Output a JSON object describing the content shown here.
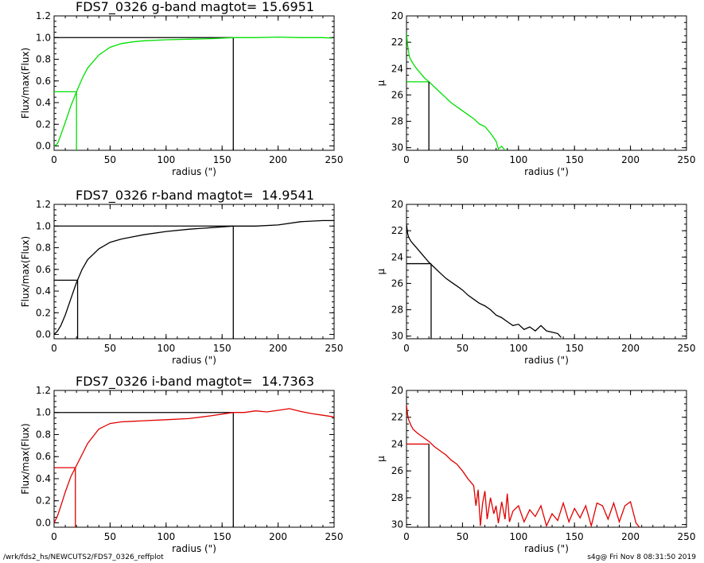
{
  "footer": {
    "left": "/wrk/fds2_hs/NEWCUTS2/FDS7_0326_reffplot",
    "right": "s4g@  Fri Nov  8 08:31:50 2019"
  },
  "chart_data": [
    {
      "type": "line",
      "title": "FDS7_0326 g-band  magtot=",
      "magtot": "15.6951",
      "xlabel": "radius (\")",
      "ylabel": "Flux/max(Flux)",
      "xlim": [
        0,
        250
      ],
      "ylim": [
        -0.04,
        1.2
      ],
      "xticks": [
        0,
        50,
        100,
        150,
        200,
        250
      ],
      "yticks": [
        "0.0",
        "0.2",
        "0.4",
        "0.6",
        "0.8",
        "1.0",
        "1.2"
      ],
      "color": "#00e000",
      "series": [
        {
          "x": [
            0,
            3,
            6,
            10,
            15,
            20,
            25,
            30,
            40,
            50,
            60,
            70,
            80,
            100,
            120,
            140,
            160,
            180,
            200,
            220,
            240,
            248
          ],
          "y": [
            0,
            0.02,
            0.1,
            0.22,
            0.37,
            0.5,
            0.62,
            0.72,
            0.84,
            0.91,
            0.945,
            0.96,
            0.97,
            0.98,
            0.985,
            0.99,
            1.0,
            1.0,
            1.005,
            1.0,
            1.0,
            0.995
          ]
        }
      ],
      "half_light": {
        "x": 20,
        "y": 0.5
      },
      "total": {
        "x": 160,
        "y": 1.0
      }
    },
    {
      "type": "line",
      "ylabel": "μ",
      "xlabel": "radius (\")",
      "xlim": [
        0,
        250
      ],
      "ylim": [
        30.2,
        20
      ],
      "xticks": [
        0,
        50,
        100,
        150,
        200,
        250
      ],
      "yticks": [
        "20",
        "22",
        "24",
        "26",
        "28",
        "30"
      ],
      "color": "#00e000",
      "series": [
        {
          "x": [
            0,
            1,
            2,
            3,
            5,
            8,
            12,
            16,
            20,
            25,
            30,
            35,
            40,
            45,
            50,
            55,
            60,
            65,
            70,
            75,
            80,
            82,
            85,
            88
          ],
          "y": [
            21.3,
            22.2,
            22.8,
            23.2,
            23.5,
            23.9,
            24.3,
            24.7,
            25.0,
            25.4,
            25.8,
            26.2,
            26.6,
            26.9,
            27.2,
            27.5,
            27.8,
            28.2,
            28.4,
            28.9,
            29.5,
            30.1,
            29.9,
            30.2
          ]
        }
      ],
      "half_light": {
        "x": 20,
        "y": 25.0
      }
    },
    {
      "type": "line",
      "title": "FDS7_0326 r-band  magtot=",
      "magtot": "14.9541",
      "xlabel": "radius (\")",
      "ylabel": "Flux/max(Flux)",
      "xlim": [
        0,
        250
      ],
      "ylim": [
        -0.04,
        1.2
      ],
      "xticks": [
        0,
        50,
        100,
        150,
        200,
        250
      ],
      "yticks": [
        "0.0",
        "0.2",
        "0.4",
        "0.6",
        "0.8",
        "1.0",
        "1.2"
      ],
      "color": "#000000",
      "series": [
        {
          "x": [
            0,
            3,
            6,
            10,
            15,
            20,
            25,
            30,
            40,
            50,
            60,
            70,
            80,
            100,
            120,
            140,
            160,
            180,
            200,
            220,
            240,
            250
          ],
          "y": [
            0,
            0.03,
            0.08,
            0.18,
            0.33,
            0.48,
            0.6,
            0.69,
            0.79,
            0.85,
            0.88,
            0.9,
            0.92,
            0.95,
            0.97,
            0.985,
            1.0,
            1.0,
            1.01,
            1.04,
            1.05,
            1.05
          ]
        }
      ],
      "half_light": {
        "x": 21,
        "y": 0.5
      },
      "total": {
        "x": 160,
        "y": 1.0
      }
    },
    {
      "type": "line",
      "ylabel": "μ",
      "xlabel": "radius (\")",
      "xlim": [
        0,
        250
      ],
      "ylim": [
        30.2,
        20
      ],
      "xticks": [
        0,
        50,
        100,
        150,
        200,
        250
      ],
      "yticks": [
        "20",
        "22",
        "24",
        "26",
        "28",
        "30"
      ],
      "color": "#000000",
      "series": [
        {
          "x": [
            0,
            1,
            2,
            4,
            6,
            10,
            15,
            20,
            25,
            30,
            35,
            40,
            45,
            50,
            55,
            60,
            65,
            70,
            75,
            80,
            85,
            90,
            95,
            100,
            105,
            110,
            115,
            120,
            125,
            130,
            135,
            138
          ],
          "y": [
            21.5,
            22.2,
            22.5,
            22.8,
            23.0,
            23.4,
            23.9,
            24.4,
            24.8,
            25.2,
            25.6,
            25.9,
            26.2,
            26.5,
            26.9,
            27.2,
            27.5,
            27.7,
            28.0,
            28.4,
            28.6,
            28.9,
            29.2,
            29.1,
            29.5,
            29.3,
            29.6,
            29.2,
            29.6,
            29.7,
            29.8,
            30.1
          ]
        }
      ],
      "half_light": {
        "x": 22,
        "y": 24.5
      }
    },
    {
      "type": "line",
      "title": "FDS7_0326 i-band  magtot=",
      "magtot": "14.7363",
      "xlabel": "radius (\")",
      "ylabel": "Flux/max(Flux)",
      "xlim": [
        0,
        250
      ],
      "ylim": [
        -0.04,
        1.2
      ],
      "xticks": [
        0,
        50,
        100,
        150,
        200,
        250
      ],
      "yticks": [
        "0.0",
        "0.2",
        "0.4",
        "0.6",
        "0.8",
        "1.0",
        "1.2"
      ],
      "color": "#e00000",
      "series": [
        {
          "x": [
            0,
            3,
            6,
            10,
            15,
            19,
            25,
            30,
            40,
            50,
            60,
            70,
            80,
            100,
            120,
            140,
            160,
            170,
            180,
            190,
            200,
            210,
            220,
            230,
            240,
            250
          ],
          "y": [
            0,
            0.06,
            0.15,
            0.28,
            0.42,
            0.5,
            0.62,
            0.72,
            0.85,
            0.9,
            0.915,
            0.92,
            0.925,
            0.935,
            0.945,
            0.97,
            1.0,
            1.0,
            1.015,
            1.005,
            1.02,
            1.035,
            1.01,
            0.99,
            0.975,
            0.96
          ]
        }
      ],
      "half_light": {
        "x": 19,
        "y": 0.5
      },
      "total": {
        "x": 160,
        "y": 1.0
      }
    },
    {
      "type": "line",
      "ylabel": "μ",
      "xlabel": "radius (\")",
      "xlim": [
        0,
        250
      ],
      "ylim": [
        30.2,
        20
      ],
      "xticks": [
        0,
        50,
        100,
        150,
        200,
        250
      ],
      "yticks": [
        "20",
        "22",
        "24",
        "26",
        "28",
        "30"
      ],
      "color": "#e00000",
      "series": [
        {
          "x": [
            0,
            1,
            2,
            4,
            6,
            10,
            15,
            20,
            25,
            30,
            35,
            40,
            45,
            50,
            55,
            60,
            62,
            64,
            66,
            68,
            70,
            72,
            75,
            78,
            80,
            82,
            85,
            88,
            90,
            92,
            95,
            100,
            105,
            110,
            115,
            120,
            125,
            130,
            135,
            140,
            145,
            150,
            155,
            160,
            165,
            170,
            175,
            180,
            185,
            190,
            195,
            200,
            205,
            208
          ],
          "y": [
            21.1,
            21.8,
            22.2,
            22.6,
            22.9,
            23.2,
            23.5,
            23.8,
            24.2,
            24.5,
            24.8,
            25.2,
            25.5,
            26.0,
            26.6,
            27.1,
            28.6,
            27.4,
            30.1,
            28.4,
            27.5,
            29.6,
            28.0,
            29.2,
            28.6,
            29.9,
            28.3,
            29.6,
            27.7,
            29.8,
            29.0,
            28.6,
            29.8,
            28.9,
            29.4,
            28.6,
            30.1,
            29.2,
            29.7,
            28.4,
            29.8,
            28.8,
            29.5,
            28.6,
            30.1,
            28.4,
            28.6,
            29.6,
            28.4,
            29.8,
            28.6,
            28.3,
            29.9,
            30.2
          ]
        }
      ],
      "half_light": {
        "x": 20,
        "y": 24.0
      }
    }
  ]
}
